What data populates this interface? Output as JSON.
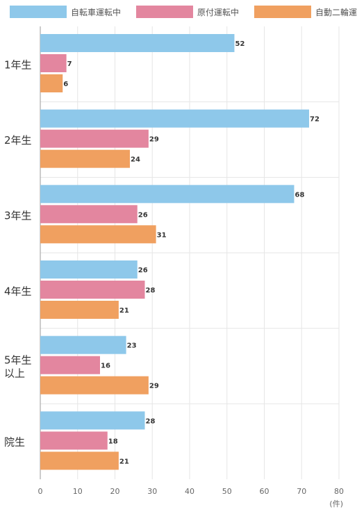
{
  "chart_data": {
    "type": "bar",
    "orientation": "horizontal",
    "categories": [
      [
        "1年生"
      ],
      [
        "2年生"
      ],
      [
        "3年生"
      ],
      [
        "4年生"
      ],
      [
        "5年生",
        "以上"
      ],
      [
        "院生"
      ]
    ],
    "series": [
      {
        "name": "自転車運転中",
        "color": "#8ec8ea",
        "values": [
          52,
          72,
          68,
          26,
          23,
          28
        ]
      },
      {
        "name": "原付運転中",
        "color": "#e3869f",
        "values": [
          7,
          29,
          26,
          28,
          16,
          18
        ]
      },
      {
        "name": "自動二輪運転中",
        "color": "#f0a060",
        "values": [
          6,
          24,
          31,
          21,
          29,
          21
        ]
      }
    ],
    "xlim": [
      0,
      80
    ],
    "xticks": [
      0,
      10,
      20,
      30,
      40,
      50,
      60,
      70,
      80
    ],
    "xunit": "(件)",
    "grid": true,
    "legend_position": "top",
    "data_labels": true
  }
}
